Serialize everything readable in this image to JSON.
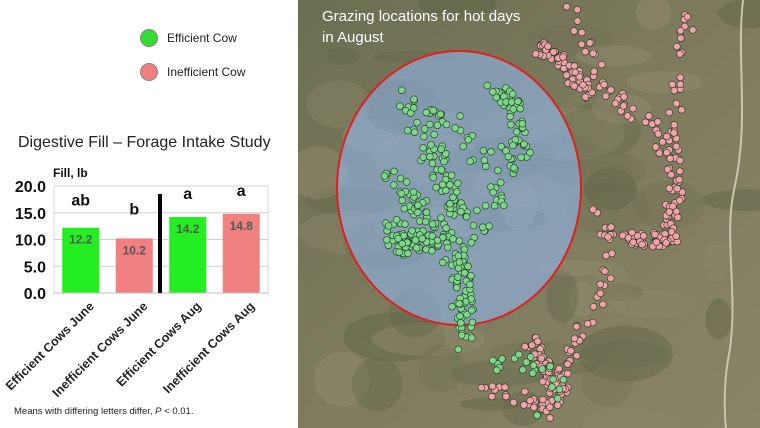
{
  "legend": [
    {
      "label": "Efficient Cow",
      "color": "#33dd33"
    },
    {
      "label": "Inefficient Cow",
      "color": "#f08080"
    }
  ],
  "chart_data": {
    "type": "bar",
    "title": "Digestive Fill – Forage Intake Study",
    "ylabel": "Fill, lb",
    "xlabel": "",
    "ylim": [
      0,
      20
    ],
    "yticks": [
      "0.0",
      "5.0",
      "10.0",
      "15.0",
      "20.0"
    ],
    "categories": [
      "Efficient Cows June",
      "Inefficient Cows June",
      "Efficient Cows Aug",
      "Inefficient Cows Aug"
    ],
    "values": [
      12.2,
      10.2,
      14.2,
      14.8
    ],
    "value_labels": [
      "12.2",
      "10.2",
      "14.2",
      "14.8"
    ],
    "significance_letters": [
      "ab",
      "b",
      "a",
      "a"
    ],
    "bar_colors": [
      "#22ee22",
      "#f08080",
      "#22ee22",
      "#f08080"
    ],
    "grid": true,
    "divider": "between June and Aug"
  },
  "footnote": {
    "text": "Means with differing letters differ, ",
    "p": "P",
    "rest": " < 0.01."
  },
  "map": {
    "title": "Grazing locations for hot days in August",
    "efficient_color": "#7fd68a",
    "inefficient_color": "#f4a0a8",
    "ellipse_fill": "#8fb4e6",
    "ellipse_stroke": "#e0201e"
  }
}
